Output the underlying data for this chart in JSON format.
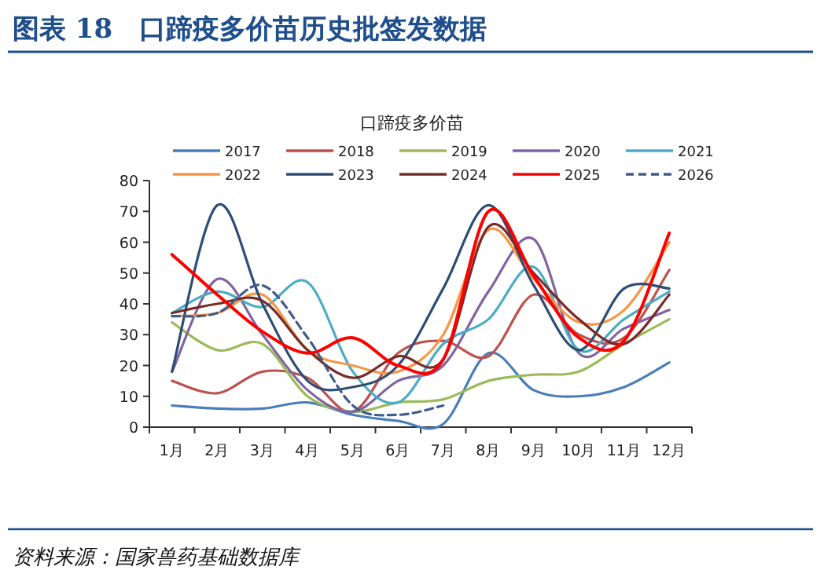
{
  "chart_data": {
    "type": "line",
    "title": "图表 18　口蹄疫多价苗历史批签发数据",
    "subtitle": "口蹄疫多价苗",
    "categories": [
      "1月",
      "2月",
      "3月",
      "4月",
      "5月",
      "6月",
      "7月",
      "8月",
      "9月",
      "10月",
      "11月",
      "12月"
    ],
    "ylim": [
      0,
      80
    ],
    "yticks": [
      0,
      10,
      20,
      30,
      40,
      50,
      60,
      70,
      80
    ],
    "grid": false,
    "legend": "top",
    "marker": "none",
    "series": [
      {
        "name": "2017",
        "color": "#4a7ebb",
        "values": [
          7,
          6,
          6,
          8,
          4,
          2,
          1,
          24,
          12,
          10,
          13,
          21
        ]
      },
      {
        "name": "2018",
        "color": "#c0504d",
        "values": [
          15,
          11,
          18,
          16,
          5,
          24,
          28,
          23,
          43,
          30,
          29,
          51
        ]
      },
      {
        "name": "2019",
        "color": "#9bbb59",
        "values": [
          34,
          25,
          27,
          10,
          5,
          8,
          9,
          15,
          17,
          18,
          27,
          35
        ]
      },
      {
        "name": "2020",
        "color": "#8064a2",
        "values": [
          18,
          48,
          30,
          12,
          5,
          15,
          20,
          44,
          61,
          24,
          32,
          38
        ]
      },
      {
        "name": "2021",
        "color": "#4bacc6",
        "values": [
          37,
          44,
          39,
          47,
          18,
          8,
          27,
          35,
          52,
          25,
          35,
          44
        ]
      },
      {
        "name": "2022",
        "color": "#f79646",
        "values": [
          36,
          37,
          43,
          25,
          20,
          18,
          30,
          64,
          48,
          34,
          38,
          60
        ]
      },
      {
        "name": "2023",
        "color": "#2c4d75",
        "values": [
          18,
          72,
          40,
          15,
          13,
          20,
          45,
          72,
          46,
          25,
          45,
          45
        ]
      },
      {
        "name": "2024",
        "color": "#772c2a",
        "values": [
          37,
          40,
          41,
          25,
          16,
          23,
          22,
          65,
          50,
          35,
          27,
          43
        ]
      },
      {
        "name": "2025",
        "color": "#ff0000",
        "values": [
          56,
          43,
          31,
          24,
          29,
          20,
          22,
          70,
          49,
          29,
          28,
          63
        ]
      },
      {
        "name": "2026",
        "color": "#3f5c8a",
        "line_style": "dashed",
        "values": [
          36,
          37,
          46,
          29,
          7,
          4,
          7,
          null,
          null,
          null,
          null,
          null
        ]
      }
    ],
    "annotations": [
      "资料来源：国家兽药基础数据库"
    ]
  }
}
